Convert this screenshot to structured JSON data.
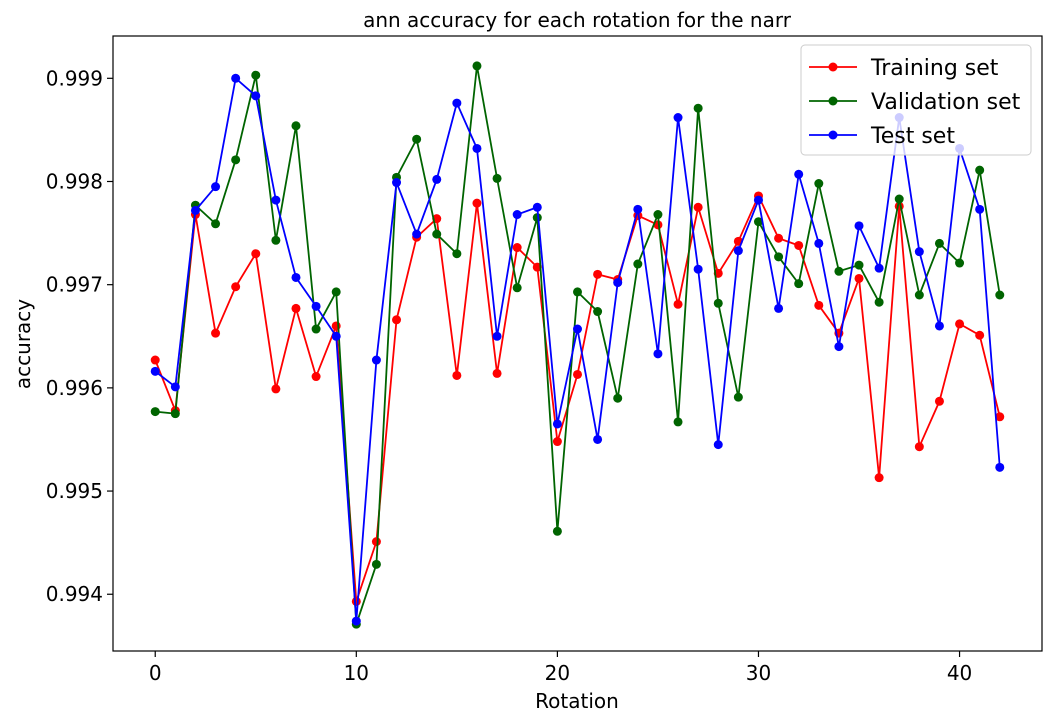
{
  "chart_data": {
    "type": "line",
    "title": "ann accuracy for each rotation for the narr",
    "xlabel": "Rotation",
    "ylabel": "accuracy",
    "xlim": [
      -2.1,
      44.1
    ],
    "ylim": [
      0.99345,
      0.99941
    ],
    "xticks": [
      0,
      10,
      20,
      30,
      40
    ],
    "xtick_labels": [
      "0",
      "10",
      "20",
      "30",
      "40"
    ],
    "yticks": [
      0.994,
      0.995,
      0.996,
      0.997,
      0.998,
      0.999
    ],
    "ytick_labels": [
      "0.994",
      "0.995",
      "0.996",
      "0.997",
      "0.998",
      "0.999"
    ],
    "grid": false,
    "legend_position": "top-right",
    "x": [
      0,
      1,
      2,
      3,
      4,
      5,
      6,
      7,
      8,
      9,
      10,
      11,
      12,
      13,
      14,
      15,
      16,
      17,
      18,
      19,
      20,
      21,
      22,
      23,
      24,
      25,
      26,
      27,
      28,
      29,
      30,
      31,
      32,
      33,
      34,
      35,
      36,
      37,
      38,
      39,
      40,
      41,
      42
    ],
    "series": [
      {
        "name": "Training set",
        "color": "#ff0000",
        "values": [
          0.99627,
          0.99578,
          0.99768,
          0.99653,
          0.99698,
          0.9973,
          0.99599,
          0.99677,
          0.99611,
          0.9966,
          0.99393,
          0.99451,
          0.99666,
          0.99746,
          0.99764,
          0.99612,
          0.99779,
          0.99614,
          0.99736,
          0.99717,
          0.99548,
          0.99613,
          0.9971,
          0.99705,
          0.99767,
          0.99758,
          0.99681,
          0.99775,
          0.99711,
          0.99742,
          0.99786,
          0.99745,
          0.99738,
          0.9968,
          0.99653,
          0.99706,
          0.99513,
          0.99776,
          0.99543,
          0.99587,
          0.99662,
          0.99651,
          0.99572
        ]
      },
      {
        "name": "Validation set",
        "color": "#006400",
        "values": [
          0.99577,
          0.99575,
          0.99777,
          0.99759,
          0.99821,
          0.99903,
          0.99743,
          0.99854,
          0.99657,
          0.99693,
          0.99371,
          0.99429,
          0.99804,
          0.99841,
          0.99749,
          0.9973,
          0.99912,
          0.99803,
          0.99697,
          0.99765,
          0.99461,
          0.99693,
          0.99674,
          0.9959,
          0.9972,
          0.99768,
          0.99567,
          0.99871,
          0.99682,
          0.99591,
          0.99761,
          0.99727,
          0.99701,
          0.99798,
          0.99713,
          0.99719,
          0.99683,
          0.99783,
          0.9969,
          0.9974,
          0.99721,
          0.99811,
          0.9969
        ]
      },
      {
        "name": "Test set",
        "color": "#0000ff",
        "values": [
          0.99616,
          0.99601,
          0.99772,
          0.99795,
          0.999,
          0.99883,
          0.99782,
          0.99707,
          0.99679,
          0.9965,
          0.99374,
          0.99627,
          0.99799,
          0.99749,
          0.99802,
          0.99876,
          0.99832,
          0.9965,
          0.99768,
          0.99775,
          0.99565,
          0.99657,
          0.9955,
          0.99702,
          0.99773,
          0.99633,
          0.99862,
          0.99715,
          0.99545,
          0.99733,
          0.99782,
          0.99677,
          0.99807,
          0.9974,
          0.9964,
          0.99757,
          0.99716,
          0.99862,
          0.99732,
          0.9966,
          0.99832,
          0.99773,
          0.99523
        ]
      }
    ]
  }
}
